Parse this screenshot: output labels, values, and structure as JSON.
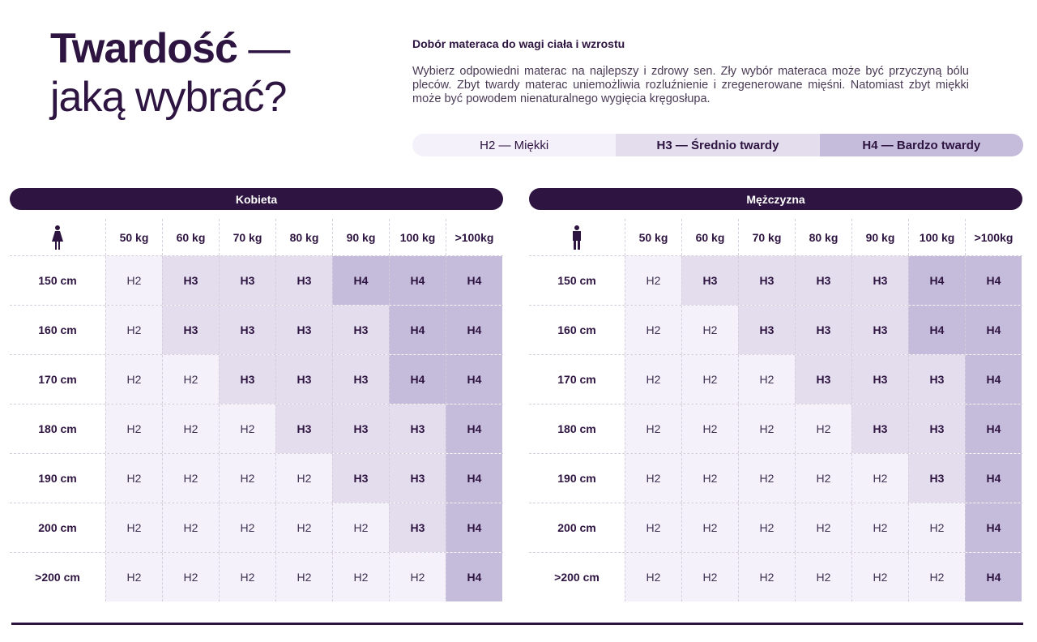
{
  "header": {
    "title_bold": "Twardość",
    "title_dash": " —",
    "title_line2": "jaką wybrać?",
    "subtitle": "Dobór materaca do wagi ciała i wzrostu",
    "description": "Wybierz odpowiedni materac na najlepszy i zdrowy sen. Zły wybór materaca może być przyczyną bólu pleców. Zbyt twardy materac uniemożliwia rozluźnienie i zregenerowane mięśni. Natomiast zbyt miękki może być powodem nienaturalnego wygięcia kręgosłupa."
  },
  "legend": [
    {
      "code": "H2",
      "label": "H2 — Miękki"
    },
    {
      "code": "H3",
      "label": "H3 — Średnio twardy"
    },
    {
      "code": "H4",
      "label": "H4 — Bardzo twardy"
    }
  ],
  "colors": {
    "dark": "#2e1440",
    "H2": "#f4f1fa",
    "H3": "#e3ddee",
    "H4": "#c5bcdc"
  },
  "weights": [
    "50 kg",
    "60 kg",
    "70 kg",
    "80 kg",
    "90 kg",
    "100 kg",
    ">100kg"
  ],
  "heights": [
    "150 cm",
    "160 cm",
    "170 cm",
    "180 cm",
    "190 cm",
    "200 cm",
    ">200 cm"
  ],
  "tables": [
    {
      "title": "Kobieta",
      "icon": "woman-icon",
      "rows": [
        [
          "H2",
          "H3",
          "H3",
          "H3",
          "H4",
          "H4",
          "H4"
        ],
        [
          "H2",
          "H3",
          "H3",
          "H3",
          "H3",
          "H4",
          "H4"
        ],
        [
          "H2",
          "H2",
          "H3",
          "H3",
          "H3",
          "H4",
          "H4"
        ],
        [
          "H2",
          "H2",
          "H2",
          "H3",
          "H3",
          "H3",
          "H4"
        ],
        [
          "H2",
          "H2",
          "H2",
          "H2",
          "H3",
          "H3",
          "H4"
        ],
        [
          "H2",
          "H2",
          "H2",
          "H2",
          "H2",
          "H3",
          "H4"
        ],
        [
          "H2",
          "H2",
          "H2",
          "H2",
          "H2",
          "H2",
          "H4"
        ]
      ]
    },
    {
      "title": "Mężczyzna",
      "icon": "man-icon",
      "rows": [
        [
          "H2",
          "H3",
          "H3",
          "H3",
          "H3",
          "H4",
          "H4"
        ],
        [
          "H2",
          "H2",
          "H3",
          "H3",
          "H3",
          "H4",
          "H4"
        ],
        [
          "H2",
          "H2",
          "H2",
          "H3",
          "H3",
          "H3",
          "H4"
        ],
        [
          "H2",
          "H2",
          "H2",
          "H2",
          "H3",
          "H3",
          "H4"
        ],
        [
          "H2",
          "H2",
          "H2",
          "H2",
          "H2",
          "H3",
          "H4"
        ],
        [
          "H2",
          "H2",
          "H2",
          "H2",
          "H2",
          "H2",
          "H4"
        ],
        [
          "H2",
          "H2",
          "H2",
          "H2",
          "H2",
          "H2",
          "H4"
        ]
      ]
    }
  ]
}
